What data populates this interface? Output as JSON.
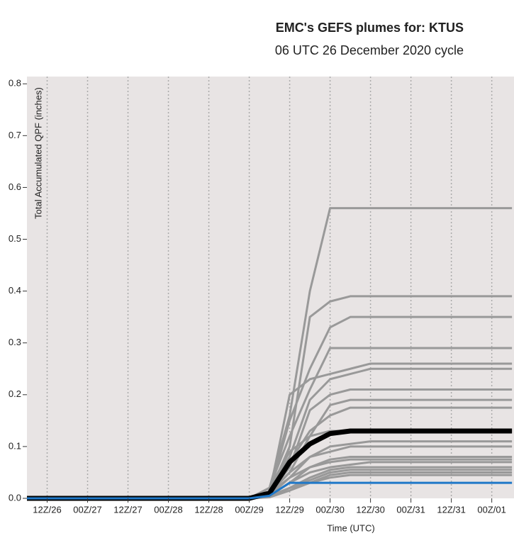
{
  "chart_data": {
    "type": "line",
    "title": "EMC's GEFS plumes for: KTUS",
    "subtitle": "06 UTC 26 December 2020 cycle",
    "y_label": "Total Accumulated QPF (inches)",
    "x_label": "Time (UTC)",
    "x": [
      0,
      6,
      12,
      18,
      24,
      30,
      36,
      42,
      48,
      54,
      60,
      66,
      72,
      78,
      84,
      90,
      96,
      102,
      108,
      114,
      120,
      126,
      132,
      138,
      144
    ],
    "xlim": [
      0,
      144.6
    ],
    "xticks": [
      {
        "value": 6,
        "label": "12Z/26"
      },
      {
        "value": 18,
        "label": "00Z/27"
      },
      {
        "value": 30,
        "label": "12Z/27"
      },
      {
        "value": 42,
        "label": "00Z/28"
      },
      {
        "value": 54,
        "label": "12Z/28"
      },
      {
        "value": 66,
        "label": "00Z/29"
      },
      {
        "value": 78,
        "label": "12Z/29"
      },
      {
        "value": 90,
        "label": "00Z/30"
      },
      {
        "value": 102,
        "label": "12Z/30"
      },
      {
        "value": 114,
        "label": "00Z/31"
      },
      {
        "value": 126,
        "label": "12Z/31"
      },
      {
        "value": 138,
        "label": "00Z/01"
      }
    ],
    "ylim": [
      0,
      0.814
    ],
    "yticks": [
      {
        "value": 0,
        "label": "0.0"
      },
      0.1,
      0.2,
      0.3,
      0.4,
      0.5,
      0.6,
      0.7,
      0.8
    ],
    "grid": true,
    "series": [
      {
        "color": "#999999",
        "values": [
          0,
          0,
          0,
          0,
          0,
          0,
          0,
          0,
          0,
          0,
          0,
          0,
          0.02,
          0.16,
          0.4,
          0.56,
          0.56,
          0.56,
          0.56,
          0.56,
          0.56,
          0.56,
          0.56,
          0.56,
          0.56
        ]
      },
      {
        "color": "#999999",
        "values": [
          0,
          0,
          0,
          0,
          0,
          0,
          0,
          0,
          0,
          0,
          0,
          0,
          0.01,
          0.1,
          0.35,
          0.38,
          0.39,
          0.39,
          0.39,
          0.39,
          0.39,
          0.39,
          0.39,
          0.39,
          0.39
        ]
      },
      {
        "color": "#999999",
        "values": [
          0,
          0,
          0,
          0,
          0,
          0,
          0,
          0,
          0,
          0,
          0,
          0,
          0.01,
          0.15,
          0.25,
          0.33,
          0.35,
          0.35,
          0.35,
          0.35,
          0.35,
          0.35,
          0.35,
          0.35,
          0.35
        ]
      },
      {
        "color": "#999999",
        "values": [
          0,
          0,
          0,
          0,
          0,
          0,
          0,
          0,
          0,
          0,
          0,
          0,
          0.02,
          0.12,
          0.21,
          0.29,
          0.29,
          0.29,
          0.29,
          0.29,
          0.29,
          0.29,
          0.29,
          0.29,
          0.29
        ]
      },
      {
        "color": "#999999",
        "values": [
          0,
          0,
          0,
          0,
          0,
          0,
          0,
          0,
          0,
          0,
          0,
          0,
          0.01,
          0.2,
          0.23,
          0.24,
          0.25,
          0.26,
          0.26,
          0.26,
          0.26,
          0.26,
          0.26,
          0.26,
          0.26
        ]
      },
      {
        "color": "#999999",
        "values": [
          0,
          0,
          0,
          0,
          0,
          0,
          0,
          0,
          0,
          0,
          0,
          0,
          0.02,
          0.08,
          0.19,
          0.23,
          0.24,
          0.25,
          0.25,
          0.25,
          0.25,
          0.25,
          0.25,
          0.25,
          0.25
        ]
      },
      {
        "color": "#999999",
        "values": [
          0,
          0,
          0,
          0,
          0,
          0,
          0,
          0,
          0,
          0,
          0,
          0,
          0.01,
          0.06,
          0.17,
          0.2,
          0.21,
          0.21,
          0.21,
          0.21,
          0.21,
          0.21,
          0.21,
          0.21,
          0.21
        ]
      },
      {
        "color": "#999999",
        "values": [
          0,
          0,
          0,
          0,
          0,
          0,
          0,
          0,
          0,
          0,
          0,
          0,
          0.01,
          0.05,
          0.12,
          0.18,
          0.19,
          0.19,
          0.19,
          0.19,
          0.19,
          0.19,
          0.19,
          0.19,
          0.19
        ]
      },
      {
        "color": "#999999",
        "values": [
          0,
          0,
          0,
          0,
          0,
          0,
          0,
          0,
          0,
          0,
          0,
          0,
          0.01,
          0.07,
          0.13,
          0.16,
          0.175,
          0.175,
          0.175,
          0.175,
          0.175,
          0.175,
          0.175,
          0.175,
          0.175
        ]
      },
      {
        "color": "#999999",
        "values": [
          0,
          0,
          0,
          0,
          0,
          0,
          0,
          0,
          0,
          0,
          0,
          0,
          0.02,
          0.09,
          0.12,
          0.13,
          0.13,
          0.13,
          0.13,
          0.13,
          0.13,
          0.13,
          0.13,
          0.13,
          0.13
        ]
      },
      {
        "color": "#999999",
        "values": [
          0,
          0,
          0,
          0,
          0,
          0,
          0,
          0,
          0,
          0,
          0,
          0,
          0.01,
          0.04,
          0.08,
          0.1,
          0.105,
          0.11,
          0.11,
          0.11,
          0.11,
          0.11,
          0.11,
          0.11,
          0.11
        ]
      },
      {
        "color": "#999999",
        "values": [
          0,
          0,
          0,
          0,
          0,
          0,
          0,
          0,
          0,
          0,
          0,
          0,
          0.01,
          0.05,
          0.08,
          0.09,
          0.1,
          0.1,
          0.1,
          0.1,
          0.1,
          0.1,
          0.1,
          0.1,
          0.1
        ]
      },
      {
        "color": "#999999",
        "values": [
          0,
          0,
          0,
          0,
          0,
          0,
          0,
          0,
          0,
          0,
          0,
          0,
          0.005,
          0.04,
          0.06,
          0.075,
          0.08,
          0.08,
          0.08,
          0.08,
          0.08,
          0.08,
          0.08,
          0.08,
          0.08
        ]
      },
      {
        "color": "#999999",
        "values": [
          0,
          0,
          0,
          0,
          0,
          0,
          0,
          0,
          0,
          0,
          0,
          0,
          0.005,
          0.03,
          0.06,
          0.07,
          0.075,
          0.075,
          0.075,
          0.075,
          0.075,
          0.075,
          0.075,
          0.075,
          0.075
        ]
      },
      {
        "color": "#999999",
        "values": [
          0,
          0,
          0,
          0,
          0,
          0,
          0,
          0,
          0,
          0,
          0,
          0,
          0.005,
          0.03,
          0.05,
          0.06,
          0.065,
          0.07,
          0.07,
          0.07,
          0.07,
          0.07,
          0.07,
          0.07,
          0.07
        ]
      },
      {
        "color": "#999999",
        "values": [
          0,
          0,
          0,
          0,
          0,
          0,
          0,
          0,
          0,
          0,
          0,
          0,
          0.005,
          0.02,
          0.04,
          0.055,
          0.06,
          0.06,
          0.06,
          0.06,
          0.06,
          0.06,
          0.06,
          0.06,
          0.06
        ]
      },
      {
        "color": "#999999",
        "values": [
          0,
          0,
          0,
          0,
          0,
          0,
          0,
          0,
          0,
          0,
          0,
          0,
          0.003,
          0.02,
          0.035,
          0.05,
          0.055,
          0.055,
          0.055,
          0.055,
          0.055,
          0.055,
          0.055,
          0.055,
          0.055
        ]
      },
      {
        "color": "#999999",
        "values": [
          0,
          0,
          0,
          0,
          0,
          0,
          0,
          0,
          0,
          0,
          0,
          0,
          0.003,
          0.02,
          0.03,
          0.045,
          0.05,
          0.05,
          0.05,
          0.05,
          0.05,
          0.05,
          0.05,
          0.05,
          0.05
        ]
      },
      {
        "color": "#999999",
        "values": [
          0,
          0,
          0,
          0,
          0,
          0,
          0,
          0,
          0,
          0,
          0,
          0,
          0.002,
          0.015,
          0.03,
          0.04,
          0.045,
          0.045,
          0.045,
          0.045,
          0.045,
          0.045,
          0.045,
          0.045,
          0.045
        ]
      },
      {
        "color": "#000000",
        "values": [
          0,
          0,
          0,
          0,
          0,
          0,
          0,
          0,
          0,
          0,
          0,
          0,
          0.01,
          0.07,
          0.105,
          0.125,
          0.13,
          0.13,
          0.13,
          0.13,
          0.13,
          0.13,
          0.13,
          0.13,
          0.13
        ]
      },
      {
        "color": "#1f78c8",
        "values": [
          0,
          0,
          0,
          0,
          0,
          0,
          0,
          0,
          0,
          0,
          0,
          0,
          0.005,
          0.03,
          0.03,
          0.03,
          0.03,
          0.03,
          0.03,
          0.03,
          0.03,
          0.03,
          0.03,
          0.03,
          0.03
        ]
      }
    ]
  }
}
